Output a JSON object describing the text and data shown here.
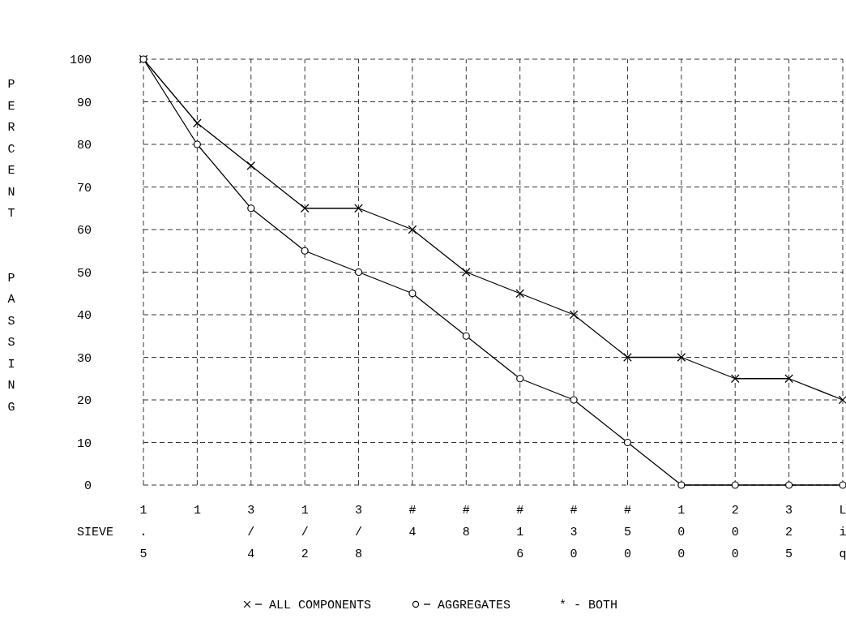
{
  "chart_data": {
    "type": "line",
    "xlabel": "SIEVE",
    "ylabel": "PERCENT  PASSING",
    "categories": [
      "1.5",
      "1",
      "3/4",
      "1/2",
      "3/8",
      "#4",
      "#8",
      "#16",
      "#30",
      "#50",
      "100",
      "200",
      "325",
      "Liq"
    ],
    "series": [
      {
        "name": "ALL COMPONENTS",
        "color": "#000000",
        "marker": "cross",
        "values": [
          100,
          85,
          75,
          65,
          65,
          60,
          50,
          45,
          40,
          30,
          30,
          25,
          25,
          20
        ]
      },
      {
        "name": "AGGREGATES",
        "color": "#000000",
        "marker": "circle",
        "values": [
          100,
          80,
          65,
          55,
          50,
          45,
          35,
          25,
          20,
          10,
          0,
          0,
          0,
          0
        ]
      }
    ],
    "ylim": [
      0,
      100
    ],
    "yticks": [
      0,
      10,
      20,
      30,
      40,
      50,
      60,
      70,
      80,
      90,
      100
    ],
    "grid": true,
    "line_style": "solid",
    "legend": "bottom",
    "annotations": [
      "* - BOTH"
    ]
  }
}
